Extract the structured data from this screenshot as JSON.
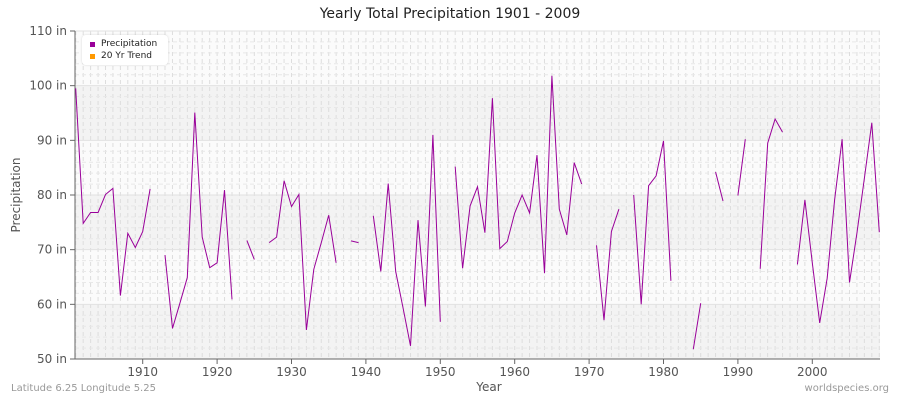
{
  "title": "Yearly Total Precipitation 1901 - 2009",
  "footer": {
    "location": "Latitude 6.25 Longitude 5.25",
    "source": "worldspecies.org"
  },
  "legend": [
    {
      "label": "Precipitation",
      "color": "#990099"
    },
    {
      "label": "20 Yr Trend",
      "color": "#ff9900"
    }
  ],
  "chart_data": {
    "type": "line",
    "title": "Yearly Total Precipitation 1901 - 2009",
    "xlabel": "Year",
    "ylabel": "Precipitation",
    "xlim": [
      1901,
      2009
    ],
    "ylim": [
      50,
      110
    ],
    "x_ticks": [
      1910,
      1920,
      1930,
      1940,
      1950,
      1960,
      1970,
      1980,
      1990,
      2000
    ],
    "y_ticks": [
      "50 in",
      "60 in",
      "70 in",
      "80 in",
      "90 in",
      "100 in",
      "110 in"
    ],
    "grid": true,
    "legend_position": "top-left",
    "series": [
      {
        "name": "Precipitation",
        "color": "#990099",
        "x": [
          1901,
          1902,
          1903,
          1904,
          1905,
          1906,
          1907,
          1908,
          1909,
          1910,
          1911,
          1912,
          1913,
          1914,
          1915,
          1916,
          1917,
          1918,
          1919,
          1920,
          1921,
          1922,
          1923,
          1924,
          1925,
          1926,
          1927,
          1928,
          1929,
          1930,
          1931,
          1932,
          1933,
          1934,
          1935,
          1936,
          1937,
          1938,
          1939,
          1940,
          1941,
          1942,
          1943,
          1944,
          1945,
          1946,
          1947,
          1948,
          1949,
          1950,
          1951,
          1952,
          1953,
          1954,
          1955,
          1956,
          1957,
          1958,
          1959,
          1960,
          1961,
          1962,
          1963,
          1964,
          1965,
          1966,
          1967,
          1968,
          1969,
          1970,
          1971,
          1972,
          1973,
          1974,
          1975,
          1976,
          1977,
          1978,
          1979,
          1980,
          1981,
          1982,
          1983,
          1984,
          1985,
          1986,
          1987,
          1988,
          1989,
          1990,
          1991,
          1992,
          1993,
          1994,
          1995,
          1996,
          1997,
          1998,
          1999,
          2000,
          2001,
          2002,
          2003,
          2004,
          2005,
          2006,
          2007,
          2008,
          2009
        ],
        "values": [
          99.5,
          74.8,
          76.8,
          76.8,
          80.1,
          81.2,
          61.6,
          73.0,
          70.4,
          73.3,
          81.1,
          null,
          69.0,
          55.6,
          60.2,
          64.9,
          95.1,
          72.3,
          66.7,
          67.6,
          80.9,
          60.9,
          null,
          71.7,
          68.2,
          null,
          71.3,
          72.3,
          82.6,
          77.9,
          80.1,
          55.3,
          66.4,
          71.3,
          76.3,
          67.6,
          null,
          71.6,
          71.3,
          null,
          76.2,
          66.0,
          82.1,
          66.0,
          59.3,
          52.4,
          75.4,
          59.6,
          91.0,
          56.8,
          null,
          85.2,
          66.6,
          78.0,
          81.5,
          73.1,
          97.7,
          70.2,
          71.5,
          76.7,
          80.0,
          76.7,
          87.3,
          65.7,
          101.8,
          77.4,
          72.7,
          85.9,
          82.0,
          null,
          70.8,
          57.1,
          73.3,
          77.4,
          null,
          80.0,
          60.0,
          81.7,
          83.5,
          89.9,
          64.3,
          null,
          null,
          51.8,
          60.2,
          null,
          84.2,
          78.9,
          null,
          79.9,
          90.2,
          null,
          66.5,
          89.5,
          93.9,
          91.5,
          null,
          67.3,
          79.1,
          67.6,
          56.6,
          64.8,
          79.1,
          90.2,
          64.0,
          73.0,
          83.1,
          93.2,
          73.2
        ]
      },
      {
        "name": "20 Yr Trend",
        "color": "#ff9900",
        "x": [],
        "values": []
      }
    ]
  }
}
